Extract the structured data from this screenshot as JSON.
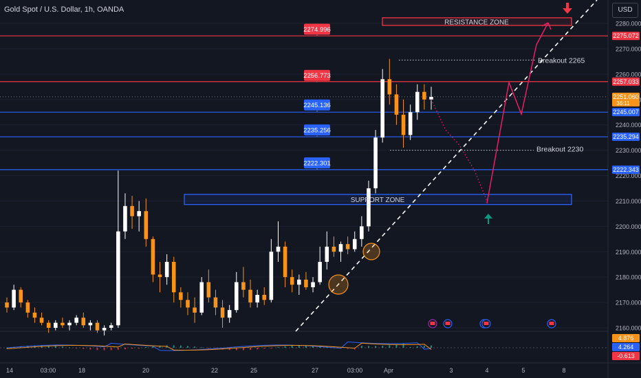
{
  "header": {
    "symbol_title": "Gold Spot / U.S. Dollar, 1h, OANDA",
    "currency_button": "USD"
  },
  "colors": {
    "background": "#131722",
    "bull": "#ffffff",
    "bear": "#f7931a",
    "resistance": "#f23645",
    "support": "#2962ff",
    "path": "#e91e63",
    "trend": "#ffffff"
  },
  "chart_data": {
    "type": "candlestick",
    "symbol": "Gold Spot / U.S. Dollar",
    "interval": "1h",
    "source": "OANDA",
    "ylim": [
      2157,
      2287
    ],
    "y_ticks": [
      "2160.000",
      "2170.000",
      "2180.000",
      "2190.000",
      "2200.000",
      "2210.000",
      "2220.000",
      "2230.000",
      "2240.000",
      "2250.000",
      "2260.000",
      "2270.000",
      "2280.000"
    ],
    "x_ticks": [
      "14",
      "03:00",
      "18",
      "20",
      "22",
      "25",
      "27",
      "03:00",
      "Apr",
      "3",
      "4",
      "5",
      "8"
    ],
    "price_labels": [
      {
        "value": 2275.072,
        "text": "2275.072",
        "color": "#f23645"
      },
      {
        "value": 2257.033,
        "text": "2257.033",
        "color": "#f23645"
      },
      {
        "value": 2251.06,
        "text": "2251.060",
        "sub": "36:11",
        "color": "#f7931a"
      },
      {
        "value": 2245.007,
        "text": "2245.007",
        "color": "#2962ff"
      },
      {
        "value": 2235.294,
        "text": "2235.294",
        "color": "#2962ff"
      },
      {
        "value": 2222.343,
        "text": "2222.343",
        "color": "#2962ff"
      }
    ],
    "horizontal_levels": [
      {
        "value": 2275.072,
        "color": "#f23645",
        "style": "solid"
      },
      {
        "value": 2257.033,
        "color": "#f23645",
        "style": "solid"
      },
      {
        "value": 2245.007,
        "color": "#2962ff",
        "style": "solid"
      },
      {
        "value": 2235.294,
        "color": "#2962ff",
        "style": "solid"
      },
      {
        "value": 2222.343,
        "color": "#2962ff",
        "style": "solid"
      },
      {
        "value": 2251.06,
        "color": "#787b86",
        "style": "dotted"
      }
    ],
    "level_callouts": [
      {
        "text": "2274.996",
        "value": 2274.996,
        "color": "#f23645"
      },
      {
        "text": "2256.773",
        "value": 2256.773,
        "color": "#f23645"
      },
      {
        "text": "2245.136",
        "value": 2245.136,
        "color": "#2962ff"
      },
      {
        "text": "2235.256",
        "value": 2235.256,
        "color": "#2962ff"
      },
      {
        "text": "2222.301",
        "value": 2222.301,
        "color": "#2962ff"
      }
    ],
    "zones": [
      {
        "label": "RESISTANCE ZONE",
        "low": 2279.2,
        "high": 2282.2,
        "color": "#f23645"
      },
      {
        "label": "SUPPORT ZONE",
        "low": 2208.6,
        "high": 2212.6,
        "color": "#2962ff"
      }
    ],
    "breakout_lines": [
      {
        "label": "Breakout 2265",
        "value": 2265
      },
      {
        "label": "Breakout 2230",
        "value": 2230
      }
    ],
    "candles": [
      [
        2170,
        2172,
        2166,
        2168
      ],
      [
        2168,
        2177,
        2167,
        2175
      ],
      [
        2175,
        2176,
        2168,
        2170
      ],
      [
        2170,
        2171,
        2164,
        2166
      ],
      [
        2166,
        2168,
        2162,
        2164
      ],
      [
        2164,
        2166,
        2161,
        2162
      ],
      [
        2162,
        2163,
        2158,
        2160
      ],
      [
        2160,
        2163,
        2159,
        2162
      ],
      [
        2162,
        2164,
        2160,
        2161
      ],
      [
        2161,
        2163,
        2159,
        2162
      ],
      [
        2162,
        2165,
        2161,
        2164
      ],
      [
        2164,
        2166,
        2160,
        2161
      ],
      [
        2161,
        2163,
        2159,
        2162
      ],
      [
        2162,
        2163,
        2158,
        2159
      ],
      [
        2159,
        2161,
        2157,
        2160
      ],
      [
        2160,
        2162,
        2159,
        2161
      ],
      [
        2161,
        2222,
        2160,
        2198
      ],
      [
        2198,
        2213,
        2195,
        2208
      ],
      [
        2208,
        2212,
        2199,
        2204
      ],
      [
        2204,
        2210,
        2198,
        2206
      ],
      [
        2206,
        2211,
        2192,
        2195
      ],
      [
        2195,
        2196,
        2178,
        2181
      ],
      [
        2181,
        2186,
        2174,
        2180
      ],
      [
        2180,
        2189,
        2177,
        2186
      ],
      [
        2186,
        2188,
        2170,
        2174
      ],
      [
        2174,
        2176,
        2168,
        2171
      ],
      [
        2171,
        2174,
        2165,
        2168
      ],
      [
        2168,
        2172,
        2162,
        2166
      ],
      [
        2166,
        2180,
        2165,
        2178
      ],
      [
        2178,
        2183,
        2170,
        2172
      ],
      [
        2172,
        2175,
        2165,
        2168
      ],
      [
        2168,
        2171,
        2160,
        2164
      ],
      [
        2164,
        2169,
        2162,
        2167
      ],
      [
        2167,
        2182,
        2166,
        2178
      ],
      [
        2178,
        2184,
        2172,
        2175
      ],
      [
        2175,
        2179,
        2168,
        2170
      ],
      [
        2170,
        2175,
        2168,
        2173
      ],
      [
        2173,
        2176,
        2169,
        2171
      ],
      [
        2171,
        2195,
        2170,
        2190
      ],
      [
        2190,
        2202,
        2186,
        2192
      ],
      [
        2192,
        2194,
        2176,
        2180
      ],
      [
        2180,
        2183,
        2174,
        2177
      ],
      [
        2177,
        2181,
        2173,
        2179
      ],
      [
        2179,
        2182,
        2175,
        2176
      ],
      [
        2176,
        2180,
        2174,
        2178
      ],
      [
        2178,
        2192,
        2177,
        2186
      ],
      [
        2186,
        2198,
        2183,
        2192
      ],
      [
        2192,
        2196,
        2188,
        2190
      ],
      [
        2190,
        2194,
        2186,
        2193
      ],
      [
        2193,
        2196,
        2189,
        2191
      ],
      [
        2191,
        2198,
        2190,
        2195
      ],
      [
        2195,
        2204,
        2192,
        2200
      ],
      [
        2200,
        2218,
        2198,
        2215
      ],
      [
        2215,
        2238,
        2213,
        2235
      ],
      [
        2235,
        2262,
        2233,
        2258
      ],
      [
        2258,
        2266,
        2248,
        2252
      ],
      [
        2252,
        2256,
        2240,
        2244
      ],
      [
        2244,
        2250,
        2231,
        2236
      ],
      [
        2236,
        2248,
        2234,
        2245
      ],
      [
        2245,
        2256,
        2242,
        2253
      ],
      [
        2253,
        2256,
        2246,
        2250
      ],
      [
        2250,
        2255,
        2246,
        2251
      ]
    ],
    "projection_path": [
      [
        2251,
        2250
      ],
      [
        2248,
        2238
      ],
      [
        2243,
        2232
      ],
      [
        2236,
        2222
      ],
      [
        2228,
        2210
      ],
      [
        2230,
        2257
      ],
      [
        2248,
        2268
      ],
      [
        2262,
        2280
      ]
    ],
    "indicator_labels": [
      {
        "text": "4.876",
        "color": "#f7931a"
      },
      {
        "text": "4.264",
        "color": "#2962ff"
      },
      {
        "text": "-0.613",
        "color": "#f23645"
      }
    ]
  }
}
